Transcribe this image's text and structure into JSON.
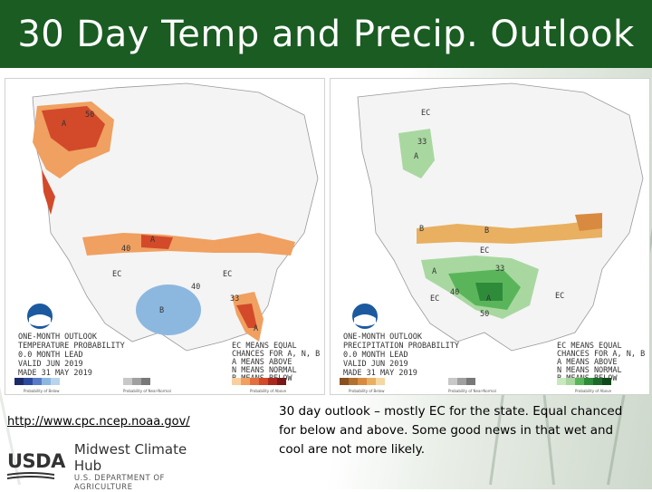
{
  "slide": {
    "title": "30 Day Temp and Precip. Outlook",
    "link_text": "http://www.cpc.ncep.noaa.gov/",
    "description": "30 day outlook – mostly EC for the state.  Equal chanced for below and above.  Some good news in that wet and cool are not more likely."
  },
  "temp_map": {
    "header_lines": [
      "ONE-MONTH OUTLOOK",
      "TEMPERATURE PROBABILITY",
      "0.0 MONTH LEAD",
      "VALID JUN 2019",
      "MADE 31 MAY 2019"
    ],
    "key_lines": [
      "EC MEANS EQUAL",
      "CHANCES FOR A, N, B",
      "A MEANS ABOVE",
      "N MEANS NORMAL",
      "B MEANS BELOW"
    ],
    "region_labels": [
      "A",
      "50",
      "A",
      "40",
      "EC",
      "EC",
      "B",
      "40",
      "33",
      "A"
    ],
    "legend_left": "Probability of Below",
    "legend_mid": "Probability of Near-Normal",
    "legend_right": "Probability of Above"
  },
  "precip_map": {
    "header_lines": [
      "ONE-MONTH OUTLOOK",
      "PRECIPITATION PROBABILITY",
      "0.0 MONTH LEAD",
      "VALID JUN 2019",
      "MADE 31 MAY 2019"
    ],
    "key_lines": [
      "EC MEANS EQUAL",
      "CHANCES FOR A, N, B",
      "A MEANS ABOVE",
      "N MEANS NORMAL",
      "B MEANS BELOW"
    ],
    "region_labels": [
      "EC",
      "33",
      "A",
      "B",
      "B",
      "EC",
      "A",
      "33",
      "EC",
      "A",
      "40",
      "50",
      "EC"
    ],
    "legend_left": "Probability of Below",
    "legend_mid": "Probability of Near-Normal",
    "legend_right": "Probability of Above"
  },
  "logo": {
    "usda": "USDA",
    "hub_name": "Midwest Climate Hub",
    "department": "U.S. DEPARTMENT OF AGRICULTURE"
  },
  "colors": {
    "title_bg": "#1a5c22",
    "above_temp": "#d24a2a",
    "above_temp_light": "#f0a060",
    "below_temp": "#8cb8e0",
    "above_precip": "#5ab55a",
    "above_precip_dark": "#2e8b3a",
    "below_precip": "#e8b060"
  }
}
